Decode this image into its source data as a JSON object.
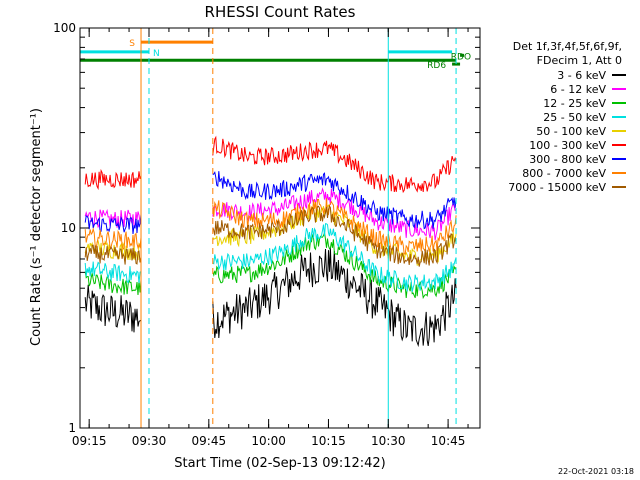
{
  "chart_data": {
    "type": "line",
    "title": "RHESSI Count Rates",
    "xlabel": "Start Time (02-Sep-13 09:12:42)",
    "ylabel": "Count Rate (s⁻¹ detector segment⁻¹)",
    "ylog": true,
    "ylim": [
      1,
      100
    ],
    "y_ticks": [
      1,
      10,
      100
    ],
    "x_units": "minutes after 09:12:42",
    "xlim_time": [
      "09:12:42",
      "10:53:00"
    ],
    "x_tick_labels": [
      "09:15",
      "09:30",
      "09:45",
      "10:00",
      "10:15",
      "10:30",
      "10:45"
    ],
    "legend_header": [
      "Det 1f,3f,4f,5f,6f,9f,",
      "FDecim 1, Att 0"
    ],
    "data_gaps": [
      [
        "09:28",
        "09:46"
      ]
    ],
    "time_points": [
      "09:14",
      "09:20",
      "09:27",
      "09:47",
      "09:55",
      "10:03",
      "10:10",
      "10:15",
      "10:20",
      "10:27",
      "10:35",
      "10:42",
      "10:47"
    ],
    "series": [
      {
        "name": "3 - 6 keV",
        "color": "#000000",
        "values": [
          4.2,
          3.8,
          3.6,
          3.5,
          4.0,
          5.0,
          6.3,
          6.5,
          5.5,
          4.2,
          3.1,
          3.2,
          4.6
        ]
      },
      {
        "name": "6 - 12 keV",
        "color": "#ff00ff",
        "values": [
          11.5,
          11.0,
          11.2,
          12.5,
          12.0,
          12.5,
          14.0,
          14.5,
          13.2,
          10.8,
          9.8,
          9.6,
          12.8
        ]
      },
      {
        "name": "12 - 25 keV",
        "color": "#00c000",
        "values": [
          5.5,
          5.2,
          5.0,
          5.8,
          5.9,
          6.8,
          8.5,
          8.8,
          7.2,
          5.5,
          4.9,
          5.0,
          6.0
        ]
      },
      {
        "name": "25 - 50 keV",
        "color": "#00e0e0",
        "values": [
          6.3,
          6.0,
          5.8,
          6.8,
          6.8,
          7.5,
          9.2,
          9.6,
          8.0,
          5.9,
          5.3,
          5.4,
          6.5
        ]
      },
      {
        "name": "50 - 100 keV",
        "color": "#e8d000",
        "values": [
          8.0,
          7.8,
          7.6,
          9.0,
          9.0,
          10.0,
          11.8,
          12.0,
          10.5,
          8.0,
          7.2,
          7.3,
          9.0
        ]
      },
      {
        "name": "100 - 300 keV",
        "color": "#ff0000",
        "values": [
          17.5,
          17.5,
          17.5,
          26.0,
          22.5,
          23.0,
          24.5,
          25.0,
          21.5,
          17.0,
          16.5,
          17.0,
          22.5
        ]
      },
      {
        "name": "300 - 800 keV",
        "color": "#0000ff",
        "values": [
          10.5,
          10.4,
          10.3,
          18.0,
          15.0,
          15.5,
          17.0,
          17.5,
          15.0,
          12.0,
          11.0,
          11.0,
          14.0
        ]
      },
      {
        "name": "800 - 7000 keV",
        "color": "#ff8000",
        "values": [
          9.0,
          8.8,
          8.6,
          12.5,
          10.8,
          11.0,
          12.5,
          12.8,
          11.0,
          8.8,
          8.0,
          8.3,
          10.5
        ]
      },
      {
        "name": "7000 - 15000 keV",
        "color": "#a05a00",
        "values": [
          7.5,
          7.3,
          7.2,
          10.0,
          9.5,
          10.0,
          11.5,
          11.8,
          10.0,
          7.8,
          7.0,
          7.2,
          9.0
        ]
      }
    ],
    "flag_bars": [
      {
        "label": "S",
        "color": "#ff8000",
        "start": "09:28",
        "end": "09:46",
        "y": 85
      },
      {
        "label": "N",
        "color": "#00e0e0",
        "start": "09:12:42",
        "end": "09:30",
        "y": 76
      },
      {
        "label": "",
        "color": "#00e0e0",
        "start": "10:30",
        "end": "10:46",
        "y": 76
      },
      {
        "label": "",
        "color": "#008000",
        "start": "09:12:42",
        "end": "10:47",
        "y": 69
      },
      {
        "label": "RD6",
        "color": "#008000",
        "start": "10:46",
        "end": "10:48",
        "y": 66
      },
      {
        "label": "RDO",
        "color": "#008000",
        "start": "10:48",
        "end": "10:49",
        "y": 73
      }
    ],
    "vertical_lines": [
      {
        "time": "09:12:42",
        "color": "#00e0e0",
        "style": "solid"
      },
      {
        "time": "09:28",
        "color": "#ff8000",
        "style": "solid"
      },
      {
        "time": "09:30",
        "color": "#00e0e0",
        "style": "dashed"
      },
      {
        "time": "09:46",
        "color": "#ff8000",
        "style": "dashed"
      },
      {
        "time": "10:30",
        "color": "#00e0e0",
        "style": "solid"
      },
      {
        "time": "10:47",
        "color": "#00e0e0",
        "style": "dashed"
      }
    ]
  },
  "footer": {
    "timestamp": "22-Oct-2021 03:18"
  }
}
